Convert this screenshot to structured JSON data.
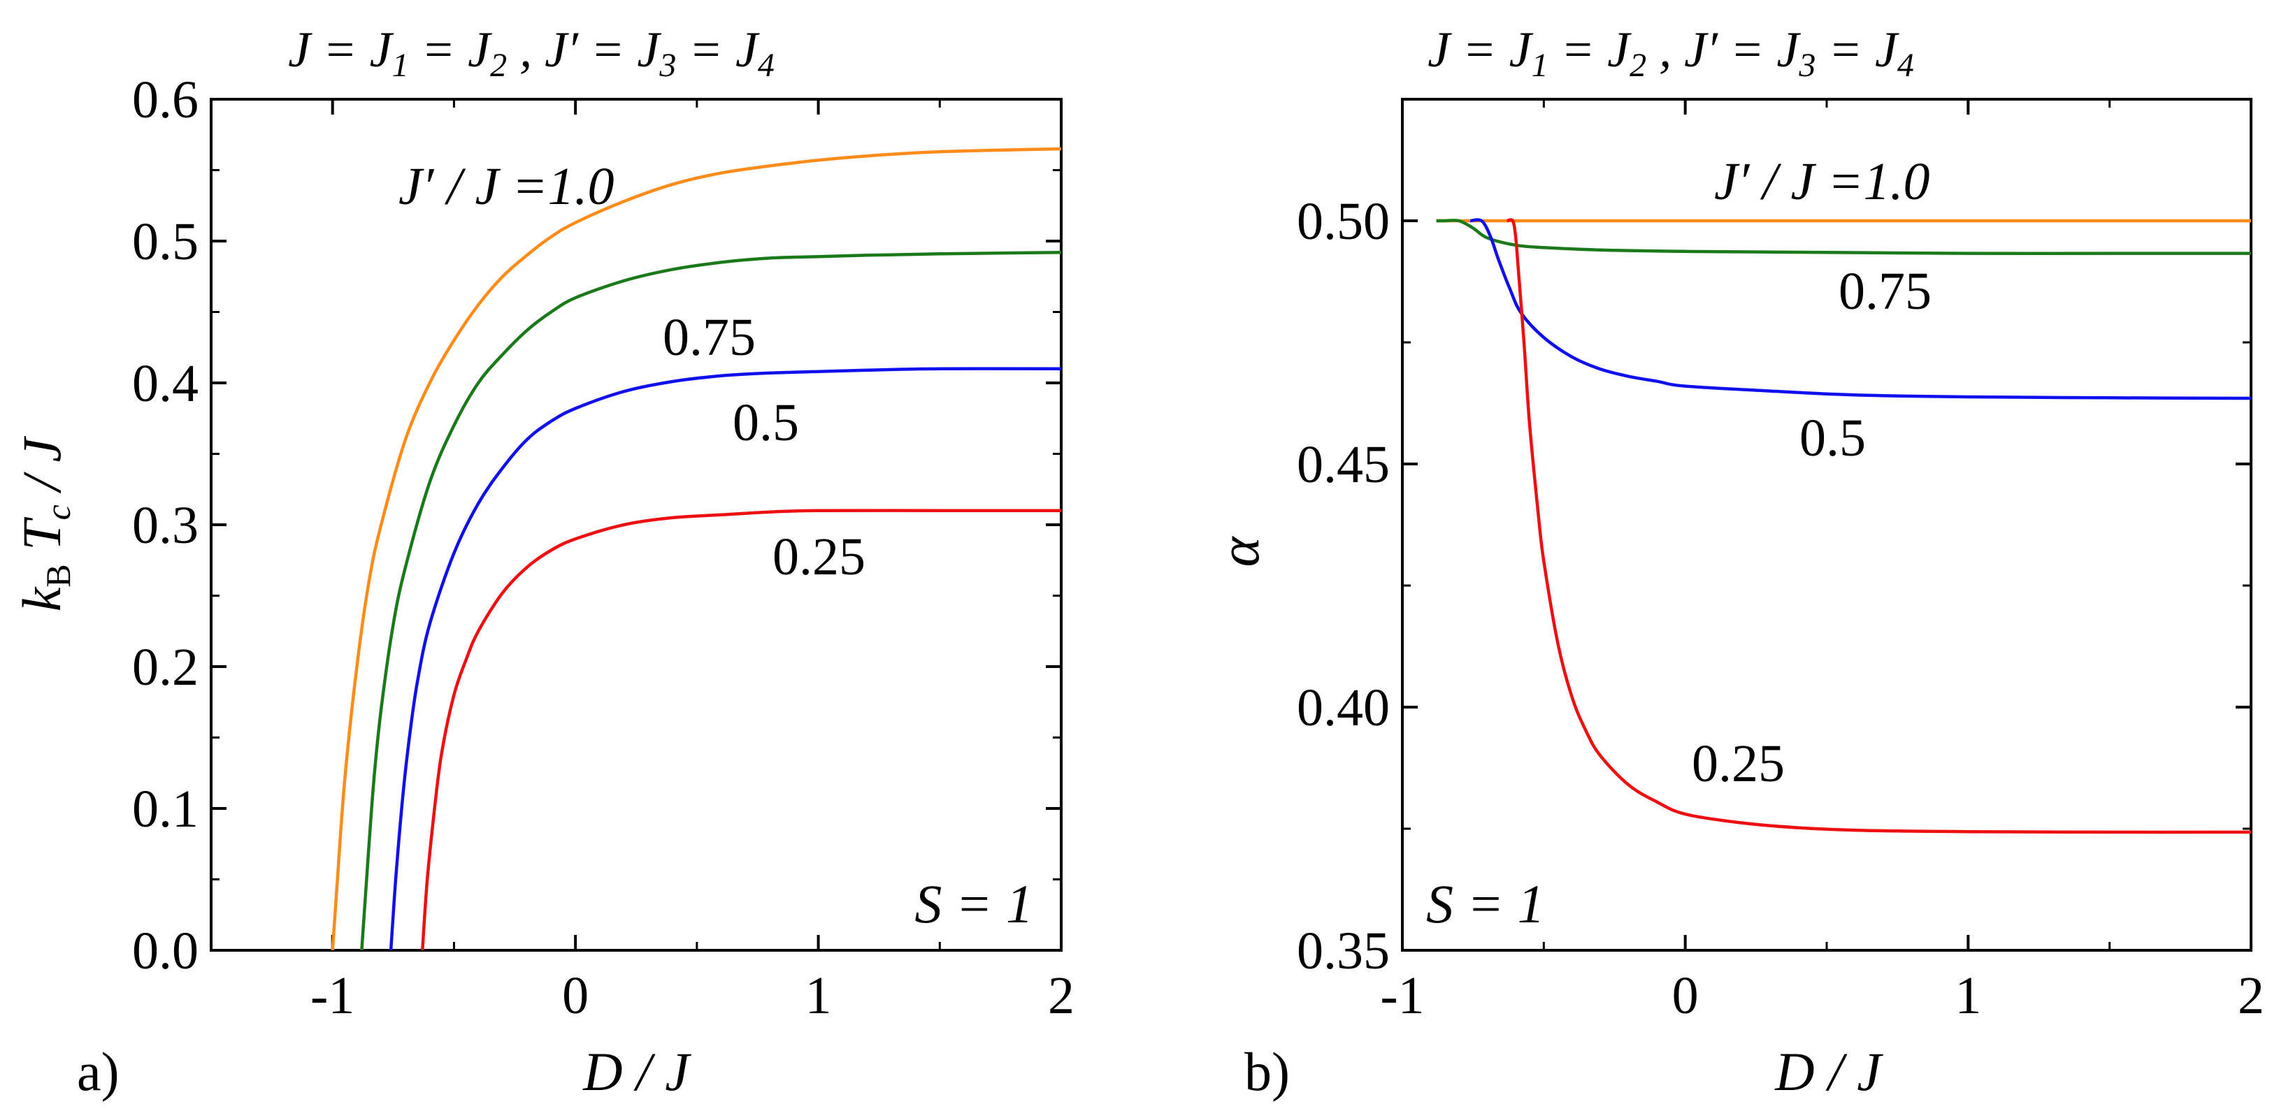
{
  "figure": {
    "panel_titles": [
      "J = J1 = J2 , J′ = J3 = J4",
      "J = J1 = J2 , J′ = J3 = J4"
    ],
    "panel_labels": [
      "a)",
      "b)"
    ],
    "spin_annotation": "S = 1",
    "colors": {
      "1.0": "#ff8c1a",
      "0.75": "#1a7a1a",
      "0.5": "#1010ee",
      "0.25": "#ee1010",
      "axis": "#000000"
    }
  },
  "chart_data": [
    {
      "panel": "a",
      "type": "line",
      "title": "J = J1 = J2 , J′ = J3 = J4",
      "xlabel": "D / J",
      "ylabel": "kB Tc / J",
      "xlim": [
        -1.5,
        2
      ],
      "ylim": [
        0,
        0.6
      ],
      "xticks": [
        -1,
        0,
        1,
        2
      ],
      "xtick_labels": [
        "-1",
        "0",
        "1",
        "2"
      ],
      "yticks": [
        0.0,
        0.1,
        0.2,
        0.3,
        0.4,
        0.5,
        0.6
      ],
      "ytick_labels": [
        "0.0",
        "0.1",
        "0.2",
        "0.3",
        "0.4",
        "0.5",
        "0.6"
      ],
      "annotation": "S = 1",
      "series": [
        {
          "name": "J′ / J =1.0",
          "label": "J′ / J =1.0",
          "color": "#ff8c1a",
          "x": [
            -1.0,
            -0.98,
            -0.95,
            -0.9,
            -0.85,
            -0.8,
            -0.7,
            -0.6,
            -0.5,
            -0.4,
            -0.3,
            -0.2,
            -0.1,
            0.0,
            0.2,
            0.4,
            0.6,
            0.8,
            1.0,
            1.2,
            1.5,
            2.0
          ],
          "y": [
            0.0,
            0.05,
            0.12,
            0.2,
            0.26,
            0.3,
            0.36,
            0.4,
            0.43,
            0.455,
            0.475,
            0.49,
            0.503,
            0.513,
            0.528,
            0.54,
            0.548,
            0.553,
            0.557,
            0.56,
            0.563,
            0.565
          ]
        },
        {
          "name": "0.75",
          "label": "0.75",
          "color": "#1a7a1a",
          "x": [
            -0.88,
            -0.86,
            -0.83,
            -0.8,
            -0.75,
            -0.7,
            -0.6,
            -0.5,
            -0.4,
            -0.3,
            -0.2,
            -0.1,
            0.0,
            0.2,
            0.4,
            0.6,
            0.8,
            1.0,
            1.2,
            1.5,
            2.0
          ],
          "y": [
            0.0,
            0.05,
            0.12,
            0.17,
            0.23,
            0.27,
            0.33,
            0.37,
            0.4,
            0.42,
            0.437,
            0.45,
            0.46,
            0.472,
            0.48,
            0.485,
            0.488,
            0.489,
            0.49,
            0.491,
            0.492
          ]
        },
        {
          "name": "0.5",
          "label": "0.5",
          "color": "#1010ee",
          "x": [
            -0.76,
            -0.74,
            -0.71,
            -0.68,
            -0.65,
            -0.6,
            -0.5,
            -0.4,
            -0.3,
            -0.2,
            -0.1,
            0.0,
            0.2,
            0.4,
            0.6,
            0.8,
            1.0,
            1.2,
            1.5,
            2.0
          ],
          "y": [
            0.0,
            0.05,
            0.11,
            0.155,
            0.19,
            0.23,
            0.28,
            0.315,
            0.34,
            0.36,
            0.373,
            0.382,
            0.394,
            0.401,
            0.405,
            0.407,
            0.408,
            0.409,
            0.41,
            0.41
          ]
        },
        {
          "name": "0.25",
          "label": "0.25",
          "color": "#ee1010",
          "x": [
            -0.63,
            -0.61,
            -0.58,
            -0.55,
            -0.5,
            -0.45,
            -0.4,
            -0.3,
            -0.2,
            -0.1,
            0.0,
            0.2,
            0.4,
            0.6,
            0.8,
            1.0,
            1.5,
            2.0
          ],
          "y": [
            0.0,
            0.05,
            0.1,
            0.14,
            0.18,
            0.205,
            0.225,
            0.252,
            0.27,
            0.282,
            0.29,
            0.3,
            0.305,
            0.307,
            0.309,
            0.31,
            0.31,
            0.31
          ]
        }
      ]
    },
    {
      "panel": "b",
      "type": "line",
      "title": "J = J1 = J2 , J′ = J3 = J4",
      "xlabel": "D / J",
      "ylabel": "α",
      "xlim": [
        -1,
        2
      ],
      "ylim": [
        0.35,
        0.525
      ],
      "xticks": [
        -1,
        0,
        1,
        2
      ],
      "xtick_labels": [
        "-1",
        "0",
        "1",
        "2"
      ],
      "yticks": [
        0.35,
        0.4,
        0.45,
        0.5
      ],
      "ytick_labels": [
        "0.35",
        "0.40",
        "0.45",
        "0.50"
      ],
      "annotation": "S = 1",
      "series": [
        {
          "name": "J′ / J =1.0",
          "label": "J′ / J =1.0",
          "color": "#ff8c1a",
          "x": [
            -0.88,
            -0.5,
            0.0,
            0.5,
            1.0,
            1.5,
            2.0
          ],
          "y": [
            0.5,
            0.5,
            0.5,
            0.5,
            0.5,
            0.5,
            0.5
          ]
        },
        {
          "name": "0.75",
          "label": "0.75",
          "color": "#1a7a1a",
          "x": [
            -0.88,
            -0.85,
            -0.8,
            -0.75,
            -0.7,
            -0.6,
            -0.5,
            -0.3,
            0.0,
            0.5,
            1.0,
            1.5,
            2.0
          ],
          "y": [
            0.5,
            0.5,
            0.5,
            0.4985,
            0.4965,
            0.495,
            0.4945,
            0.494,
            0.4937,
            0.4935,
            0.4933,
            0.4933,
            0.4933
          ]
        },
        {
          "name": "0.5",
          "label": "0.5",
          "color": "#1010ee",
          "x": [
            -0.76,
            -0.72,
            -0.69,
            -0.66,
            -0.62,
            -0.58,
            -0.5,
            -0.4,
            -0.3,
            -0.2,
            -0.1,
            0.0,
            0.3,
            0.6,
            1.0,
            1.5,
            2.0
          ],
          "y": [
            0.5,
            0.5,
            0.497,
            0.492,
            0.486,
            0.481,
            0.476,
            0.472,
            0.4695,
            0.468,
            0.467,
            0.466,
            0.465,
            0.4642,
            0.4638,
            0.4636,
            0.4635
          ]
        },
        {
          "name": "0.25",
          "label": "0.25",
          "color": "#ee1010",
          "x": [
            -0.63,
            -0.61,
            -0.6,
            -0.59,
            -0.57,
            -0.55,
            -0.52,
            -0.5,
            -0.45,
            -0.4,
            -0.35,
            -0.3,
            -0.2,
            -0.1,
            0.0,
            0.2,
            0.4,
            0.6,
            0.8,
            1.0,
            1.5,
            2.0
          ],
          "y": [
            0.5,
            0.5,
            0.497,
            0.49,
            0.475,
            0.458,
            0.44,
            0.43,
            0.413,
            0.402,
            0.395,
            0.39,
            0.384,
            0.3805,
            0.378,
            0.3762,
            0.3752,
            0.3747,
            0.3745,
            0.3744,
            0.3743,
            0.3743
          ]
        }
      ]
    }
  ]
}
